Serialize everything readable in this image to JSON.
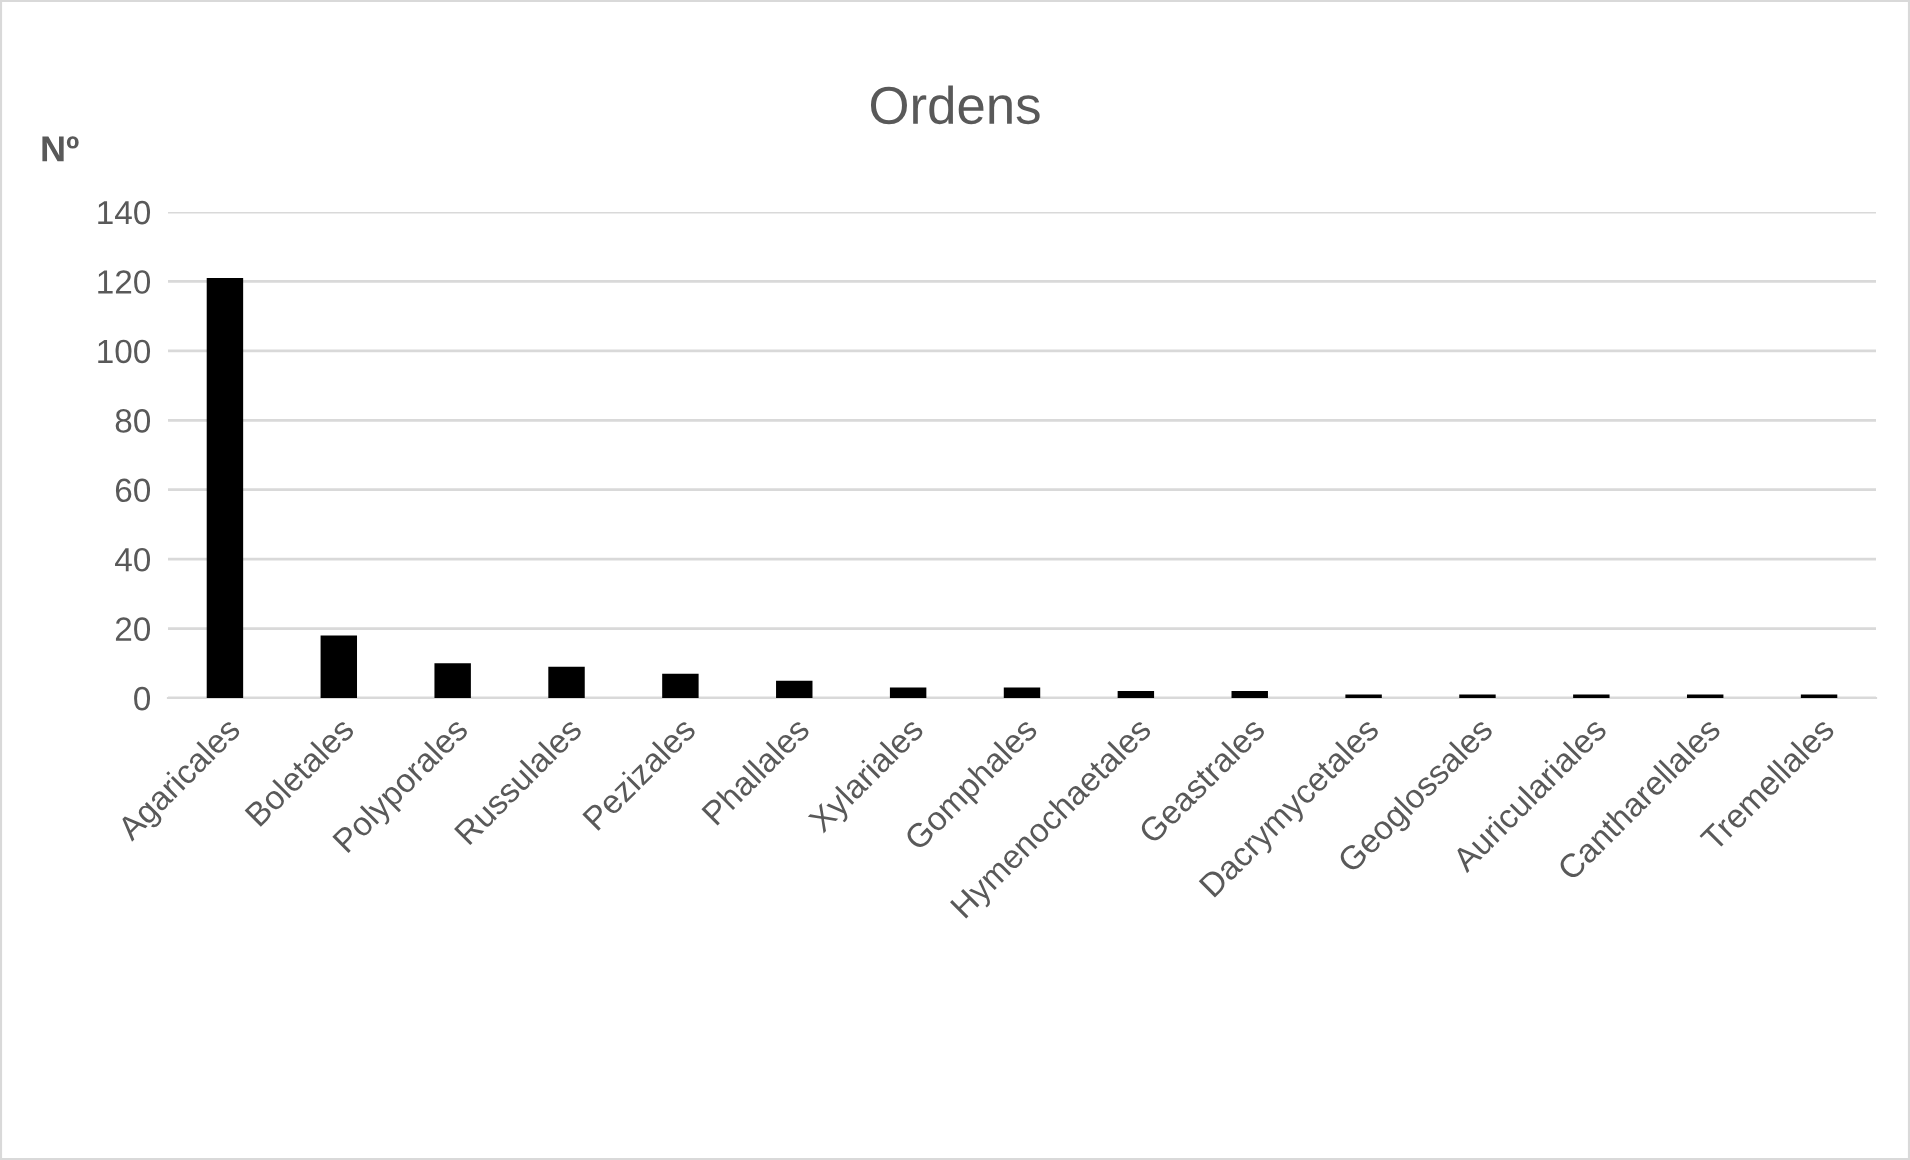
{
  "chart_data": {
    "type": "bar",
    "title": "Ordens",
    "ylabel": "Nº",
    "categories": [
      "Agaricales",
      "Boletales",
      "Polyporales",
      "Russulales",
      "Pezizales",
      "Phallales",
      "Xylariales",
      "Gomphales",
      "Hymenochaetales",
      "Geastrales",
      "Dacrymycetales",
      "Geoglossales",
      "Auriculariales",
      "Cantharellales",
      "Tremellales"
    ],
    "values": [
      121,
      18,
      10,
      9,
      7,
      5,
      3,
      3,
      2,
      2,
      1,
      1,
      1,
      1,
      1
    ],
    "color": "#000000",
    "ylim": [
      0,
      140
    ],
    "yticks": [
      0,
      20,
      40,
      60,
      80,
      100,
      120,
      140
    ],
    "grid": "y",
    "legend": false
  }
}
